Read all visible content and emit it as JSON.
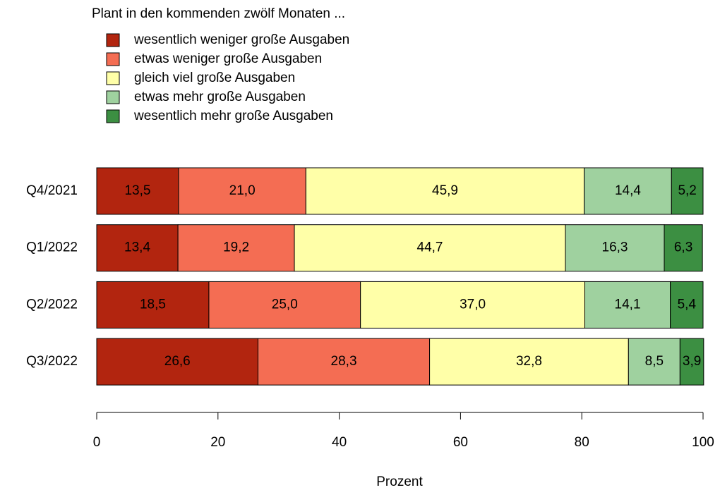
{
  "chart_data": {
    "type": "stacked-bar-horizontal",
    "legend_title": "Plant in den kommenden zwölf Monaten ...",
    "categories": [
      "Q4/2021",
      "Q1/2022",
      "Q2/2022",
      "Q3/2022"
    ],
    "series": [
      {
        "name": "wesentlich weniger große Ausgaben",
        "color": "#b2250f",
        "values": [
          13.5,
          13.4,
          18.5,
          26.6
        ],
        "value_labels": [
          "13,5",
          "13,4",
          "18,5",
          "26,6"
        ]
      },
      {
        "name": "etwas weniger große Ausgaben",
        "color": "#f46d53",
        "values": [
          21.0,
          19.2,
          25.0,
          28.3
        ],
        "value_labels": [
          "21,0",
          "19,2",
          "25,0",
          "28,3"
        ]
      },
      {
        "name": "gleich viel große Ausgaben",
        "color": "#ffffa8",
        "values": [
          45.9,
          44.7,
          37.0,
          32.8
        ],
        "value_labels": [
          "45,9",
          "44,7",
          "37,0",
          "32,8"
        ]
      },
      {
        "name": "etwas mehr große Ausgaben",
        "color": "#9fd19f",
        "values": [
          14.4,
          16.3,
          14.1,
          8.5
        ],
        "value_labels": [
          "14,4",
          "16,3",
          "14,1",
          "8,5"
        ]
      },
      {
        "name": "wesentlich mehr große Ausgaben",
        "color": "#3c8f42",
        "values": [
          5.2,
          6.3,
          5.4,
          3.9
        ],
        "value_labels": [
          "5,2",
          "6,3",
          "5,4",
          "3,9"
        ]
      }
    ],
    "xlabel": "Prozent",
    "xlim": [
      0,
      100
    ],
    "xticks": [
      0,
      20,
      40,
      60,
      80,
      100
    ]
  }
}
